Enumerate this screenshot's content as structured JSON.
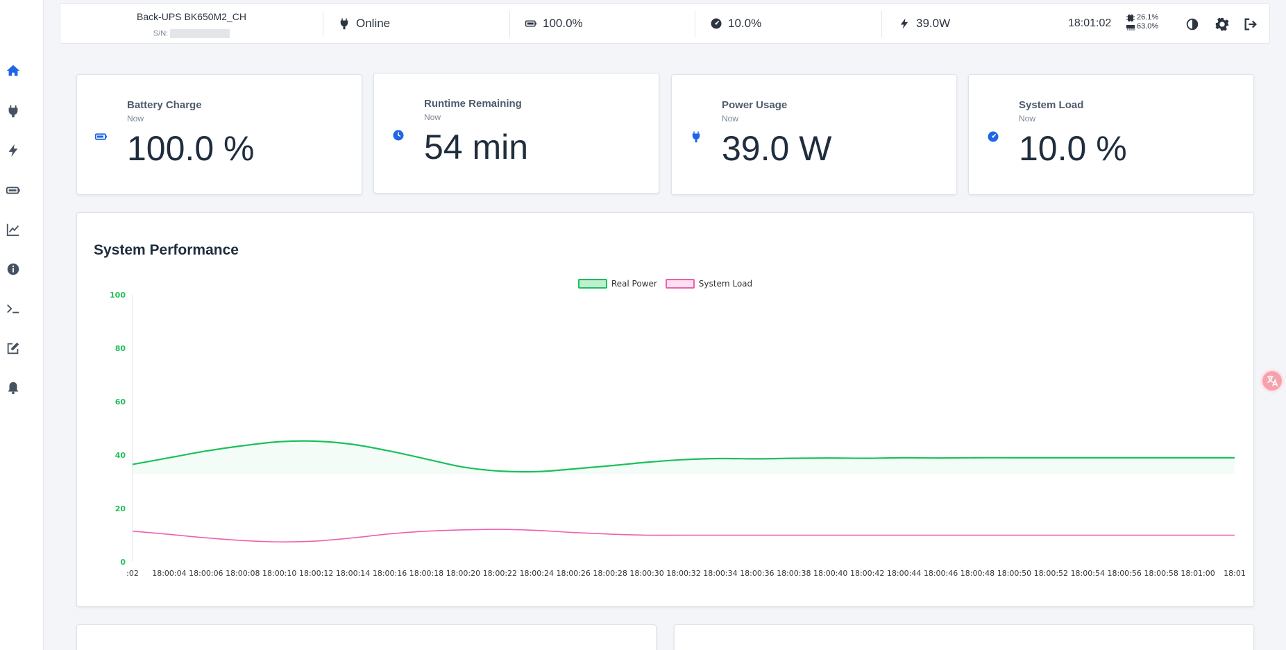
{
  "sidebar": {
    "items": [
      {
        "icon": "home-icon",
        "active": true
      },
      {
        "icon": "plug-icon"
      },
      {
        "icon": "bolt-icon"
      },
      {
        "icon": "battery-icon"
      },
      {
        "icon": "chart-line-icon"
      },
      {
        "icon": "info-icon"
      },
      {
        "icon": "terminal-icon"
      },
      {
        "icon": "edit-icon"
      },
      {
        "icon": "bell-icon"
      }
    ]
  },
  "topbar": {
    "device_name": "Back-UPS BK650M2_CH",
    "serial_label": "S/N:",
    "status": "Online",
    "battery": "100.0%",
    "load": "10.0%",
    "power": "39.0W",
    "time": "18:01:02",
    "cpu": "26.1%",
    "memory": "63.0%"
  },
  "metrics": [
    {
      "title": "Battery Charge",
      "sub": "Now",
      "value": "100.0 %",
      "icon": "battery-icon"
    },
    {
      "title": "Runtime Remaining",
      "sub": "Now",
      "value": "54 min",
      "icon": "clock-icon"
    },
    {
      "title": "Power Usage",
      "sub": "Now",
      "value": "39.0 W",
      "icon": "plug-icon"
    },
    {
      "title": "System Load",
      "sub": "Now",
      "value": "10.0 %",
      "icon": "gauge-icon"
    }
  ],
  "performance": {
    "title": "System Performance"
  },
  "colors": {
    "accent": "#1e66e6",
    "real_power": "#19c15a",
    "system_load": "#ef5fae"
  },
  "chart_data": {
    "type": "line",
    "title": "System Performance",
    "ylim": [
      0,
      100
    ],
    "yticks": [
      0,
      20,
      40,
      60,
      80,
      100
    ],
    "legend_placement": "top-center",
    "grid": false,
    "x": [
      ":02",
      "18:00:04",
      "18:00:06",
      "18:00:08",
      "18:00:10",
      "18:00:12",
      "18:00:14",
      "18:00:16",
      "18:00:18",
      "18:00:20",
      "18:00:22",
      "18:00:24",
      "18:00:26",
      "18:00:28",
      "18:00:30",
      "18:00:32",
      "18:00:34",
      "18:00:36",
      "18:00:38",
      "18:00:40",
      "18:00:42",
      "18:00:44",
      "18:00:46",
      "18:00:48",
      "18:00:50",
      "18:00:52",
      "18:00:54",
      "18:00:56",
      "18:00:58",
      "18:01:00",
      "18:01"
    ],
    "series": [
      {
        "name": "Real Power",
        "values": [
          36.5,
          39,
          41.5,
          43.5,
          45,
          45.2,
          44,
          41.5,
          38.5,
          35.5,
          34,
          33.8,
          34.8,
          36,
          37.3,
          38.3,
          38.7,
          38.6,
          38.8,
          38.9,
          38.8,
          39,
          38.9,
          39,
          39,
          39,
          39,
          39,
          39,
          39,
          39
        ]
      },
      {
        "name": "System Load",
        "values": [
          11.5,
          10.3,
          9,
          8,
          7.5,
          7.8,
          9,
          10.5,
          11.5,
          12,
          12.2,
          11.8,
          11,
          10.4,
          10,
          10,
          10,
          10,
          10,
          10,
          10,
          10,
          10,
          10,
          10,
          10,
          10,
          10,
          10,
          10,
          10
        ]
      }
    ]
  }
}
